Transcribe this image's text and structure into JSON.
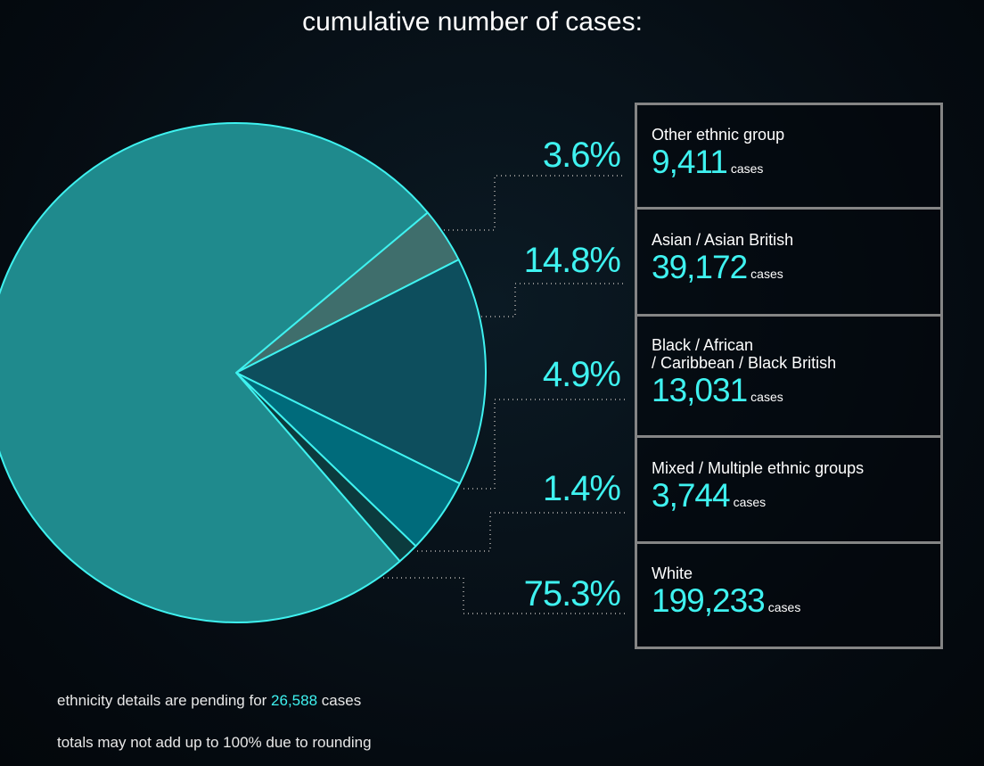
{
  "chart_data": {
    "type": "pie",
    "title": "cumulative number of cases:",
    "categories": [
      "Other ethnic group",
      "Asian / Asian British",
      "Black / African\n/ Caribbean / Black British",
      "Mixed / Multiple ethnic groups",
      "White"
    ],
    "values": [
      3.6,
      14.8,
      4.9,
      1.4,
      75.3
    ],
    "value_labels": [
      "3.6%",
      "14.8%",
      "4.9%",
      "1.4%",
      "75.3%"
    ],
    "cases": [
      9411,
      39172,
      13031,
      3744,
      199233
    ],
    "cases_labels": [
      "9,411",
      "39,172",
      "13,031",
      "3,744",
      "199,233"
    ],
    "unit": "cases",
    "colors": [
      "#3f6e6c",
      "#0d4e5d",
      "#006b7b",
      "#0c3b3e",
      "#1f8a8d"
    ],
    "edge_color": "#3ff2f0",
    "footnote": {
      "before": "ethnicity details are pending for",
      "pending": "26,588",
      "after": "cases",
      "rounding": "totals may not add up to 100% due to rounding"
    }
  }
}
